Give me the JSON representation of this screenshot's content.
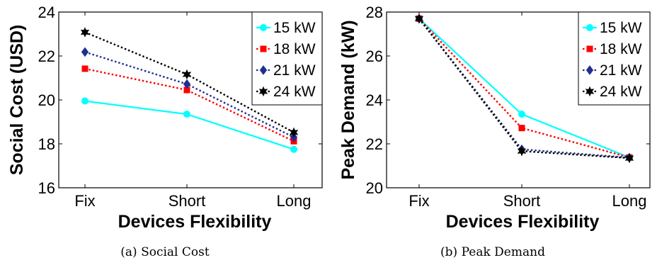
{
  "figures": [
    {
      "caption": "(a) Social Cost",
      "colors": {
        "15 kW": "#00ffff",
        "18 kW": "#ff0000",
        "21 kW": "#1f2f8f",
        "24 kW": "#000000"
      }
    },
    {
      "caption": "(b) Peak Demand",
      "colors": {
        "15 kW": "#00ffff",
        "18 kW": "#ff0000",
        "21 kW": "#1f2f8f",
        "24 kW": "#000000"
      }
    }
  ],
  "chart_data": [
    {
      "type": "line",
      "title": "",
      "xlabel": "Devices Flexibility",
      "ylabel": "Social Cost (USD)",
      "categories": [
        "Fix",
        "Short",
        "Long"
      ],
      "ylim": [
        16,
        24
      ],
      "yticks": [
        16,
        18,
        20,
        22,
        24
      ],
      "grid": false,
      "legend_position": "top-right",
      "series": [
        {
          "name": "15 kW",
          "values": [
            19.95,
            19.35,
            17.75
          ],
          "marker": "circle",
          "line": "solid"
        },
        {
          "name": "18 kW",
          "values": [
            21.42,
            20.45,
            18.12
          ],
          "marker": "square",
          "line": "dotted"
        },
        {
          "name": "21 kW",
          "values": [
            22.18,
            20.72,
            18.3
          ],
          "marker": "diamond",
          "line": "dotted"
        },
        {
          "name": "24 kW",
          "values": [
            23.08,
            21.16,
            18.52
          ],
          "marker": "hexagram",
          "line": "dotted"
        }
      ]
    },
    {
      "type": "line",
      "title": "",
      "xlabel": "Devices Flexibility",
      "ylabel": "Peak Demand (kW)",
      "categories": [
        "Fix",
        "Short",
        "Long"
      ],
      "ylim": [
        20,
        28
      ],
      "yticks": [
        20,
        22,
        24,
        26,
        28
      ],
      "grid": false,
      "legend_position": "top-right",
      "series": [
        {
          "name": "15 kW",
          "values": [
            27.7,
            23.35,
            21.38
          ],
          "marker": "circle",
          "line": "solid"
        },
        {
          "name": "18 kW",
          "values": [
            27.7,
            22.72,
            21.38
          ],
          "marker": "square",
          "line": "dotted"
        },
        {
          "name": "21 kW",
          "values": [
            27.7,
            21.75,
            21.37
          ],
          "marker": "diamond",
          "line": "dotted"
        },
        {
          "name": "24 kW",
          "values": [
            27.7,
            21.67,
            21.35
          ],
          "marker": "hexagram",
          "line": "dotted"
        }
      ]
    }
  ]
}
